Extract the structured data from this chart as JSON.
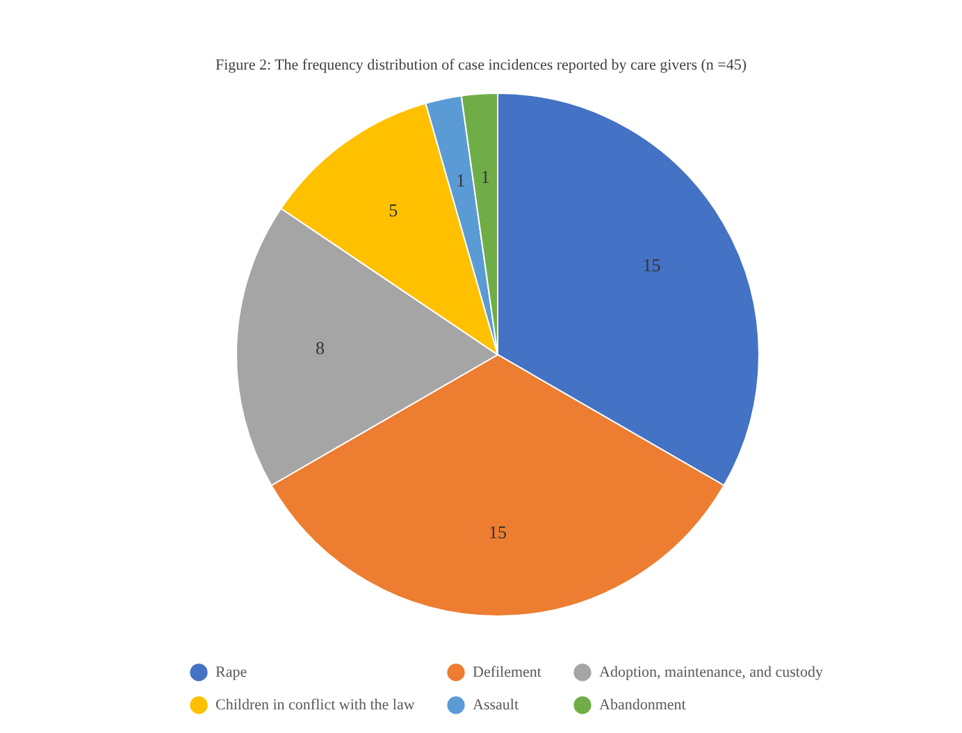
{
  "chart_data": {
    "type": "pie",
    "title": "Figure 2: The frequency distribution of case incidences reported by care givers (n =45)",
    "categories": [
      "Rape",
      "Defilement",
      "Adoption, maintenance, and custody",
      "Children in conflict with the law",
      "Assault",
      "Abandonment"
    ],
    "values": [
      15,
      15,
      8,
      5,
      1,
      1
    ],
    "colors": [
      "#4472c4",
      "#ed7d31",
      "#a5a5a5",
      "#ffc000",
      "#5b9bd5",
      "#70ad47"
    ],
    "data_labels": true,
    "legend": "bottom"
  }
}
